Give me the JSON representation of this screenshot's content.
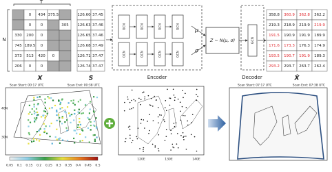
{
  "matrix_x": {
    "row_label": "N",
    "col_label": "T",
    "name": "X",
    "rows": [
      [
        null,
        "0",
        "434",
        "375.5",
        null
      ],
      [
        null,
        "0",
        "0",
        null,
        "305"
      ],
      [
        "330",
        "200",
        "0",
        null,
        null
      ],
      [
        "745",
        "189.5",
        "0",
        null,
        null
      ],
      [
        "373",
        "513",
        "420",
        "0",
        null
      ],
      [
        "206",
        "0",
        "0",
        null,
        null
      ]
    ]
  },
  "matrix_s": {
    "name": "S",
    "rows": [
      [
        "126.60",
        "37.45"
      ],
      [
        "126.63",
        "37.46"
      ],
      [
        "126.65",
        "37.46"
      ],
      [
        "126.68",
        "37.49"
      ],
      [
        "126.71",
        "37.47"
      ],
      [
        "126.74",
        "37.47"
      ]
    ]
  },
  "encoder": {
    "label": "Encoder",
    "block_label": "GCN",
    "mu": "μ",
    "sigma": "σ"
  },
  "latent": {
    "label": "Z ~ N(μ, σ)"
  },
  "decoder": {
    "label": "Decoder",
    "block_label": "GCN"
  },
  "matrix_xhat": {
    "name": "X̂",
    "imputed_color": "#e0282e",
    "rows": [
      [
        "358.8",
        "360.9",
        "362.8",
        "362.2"
      ],
      [
        "219.3",
        "218.9",
        "219.9",
        "219.9"
      ],
      [
        "191.5",
        "190.9",
        "191.9",
        "189.9"
      ],
      [
        "171.6",
        "173.3",
        "176.3",
        "174.9"
      ],
      [
        "193.5",
        "190.7",
        "191.9",
        "189.3"
      ],
      [
        "293.2",
        "293.7",
        "263.7",
        "262.4"
      ]
    ],
    "imputed": [
      [
        false,
        true,
        true,
        false
      ],
      [
        false,
        false,
        false,
        true
      ],
      [
        true,
        false,
        false,
        false
      ],
      [
        true,
        true,
        false,
        false
      ],
      [
        true,
        true,
        true,
        false
      ],
      [
        true,
        false,
        false,
        false
      ]
    ]
  },
  "maps": {
    "left": {
      "scan_start": "Scan Start: 00:17 UTC",
      "scan_end": "Scan End: 00:38 UTC",
      "colorbar": [
        "0.05",
        "0.1",
        "0.15",
        "0.2",
        "0.25",
        "0.3",
        "0.35",
        "0.4",
        "0.45",
        "0.5"
      ],
      "lat_labels": [
        "40N",
        "30N"
      ]
    },
    "middle": {
      "lon_labels": [
        "120E",
        "130E",
        "140E"
      ]
    },
    "right": {
      "scan_start": "Scan Start: 07:17 UTC",
      "scan_end": "Scan End: 07:38 UTC"
    }
  }
}
